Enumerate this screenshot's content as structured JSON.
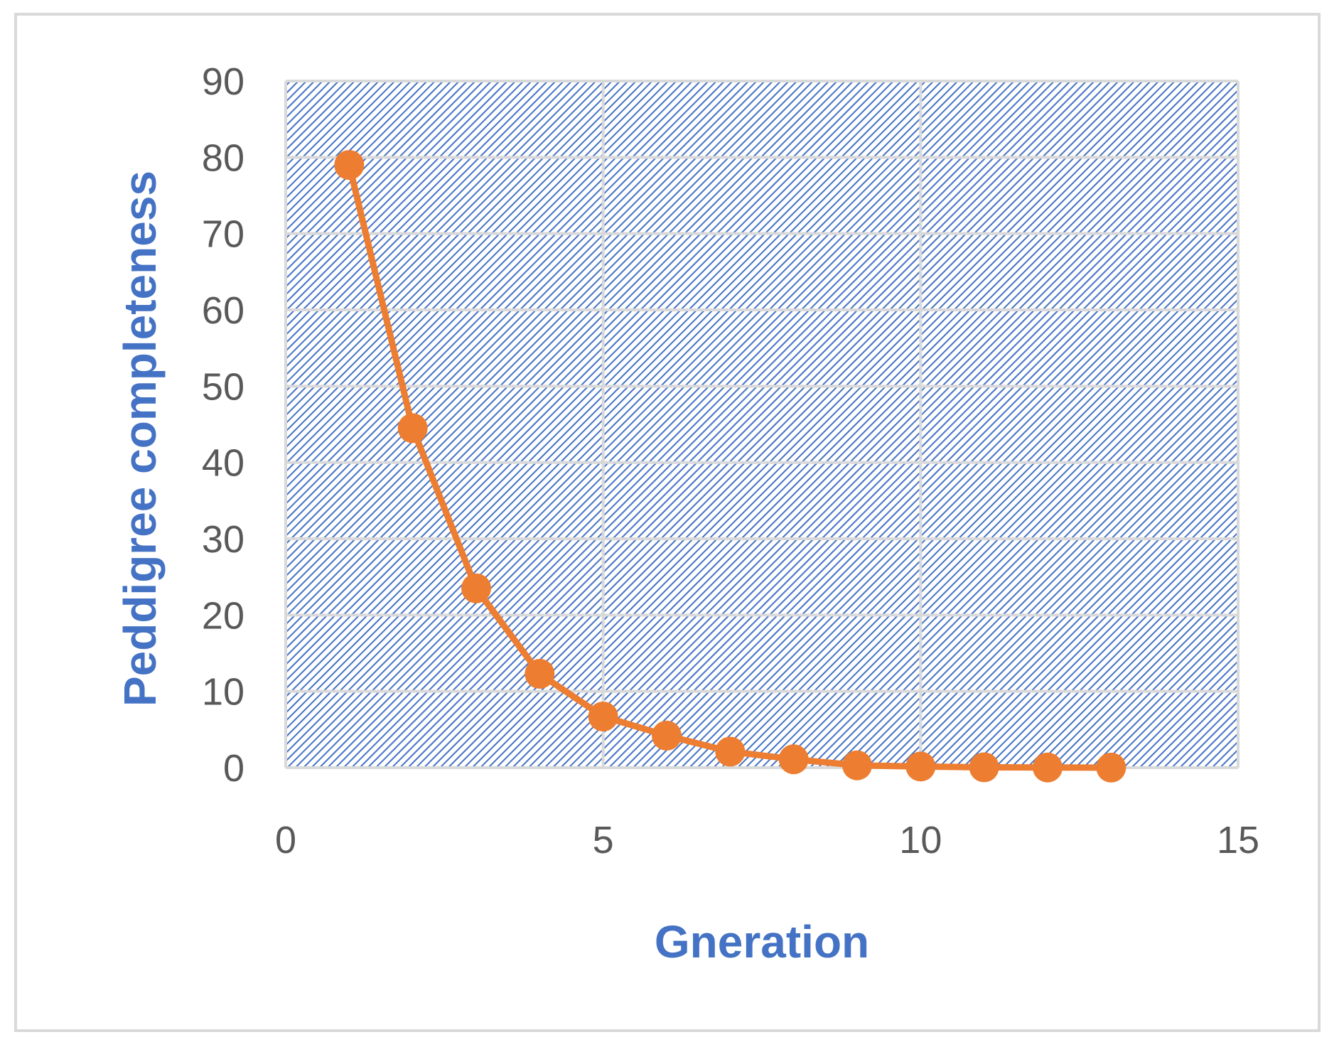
{
  "chart_data": {
    "type": "scatter",
    "xlabel": "Gneration",
    "ylabel": "Peddigree completeness",
    "xlim": [
      0,
      15
    ],
    "ylim": [
      0,
      90
    ],
    "x_ticks": [
      0,
      5,
      10,
      15
    ],
    "y_ticks": [
      0,
      10,
      20,
      30,
      40,
      50,
      60,
      70,
      80,
      90
    ],
    "grid": true,
    "plot_area_fill": "diagonal hatch",
    "series": [
      {
        "x": [
          1,
          2,
          3,
          4,
          5,
          6,
          7,
          8,
          9,
          10,
          11,
          12,
          13
        ],
        "y": [
          79,
          44.5,
          23.5,
          12.3,
          6.7,
          4.2,
          2.1,
          1.1,
          0.3,
          0.15,
          0.05,
          0.02,
          0.01
        ],
        "marker": "circle",
        "line": true,
        "color": "#ed7d31"
      }
    ]
  },
  "colors": {
    "axis_title": "#4472c4",
    "tick_label": "#595959",
    "gridline": "#d9d9d9",
    "hatch": "#4472c4",
    "series": "#ed7d31"
  }
}
